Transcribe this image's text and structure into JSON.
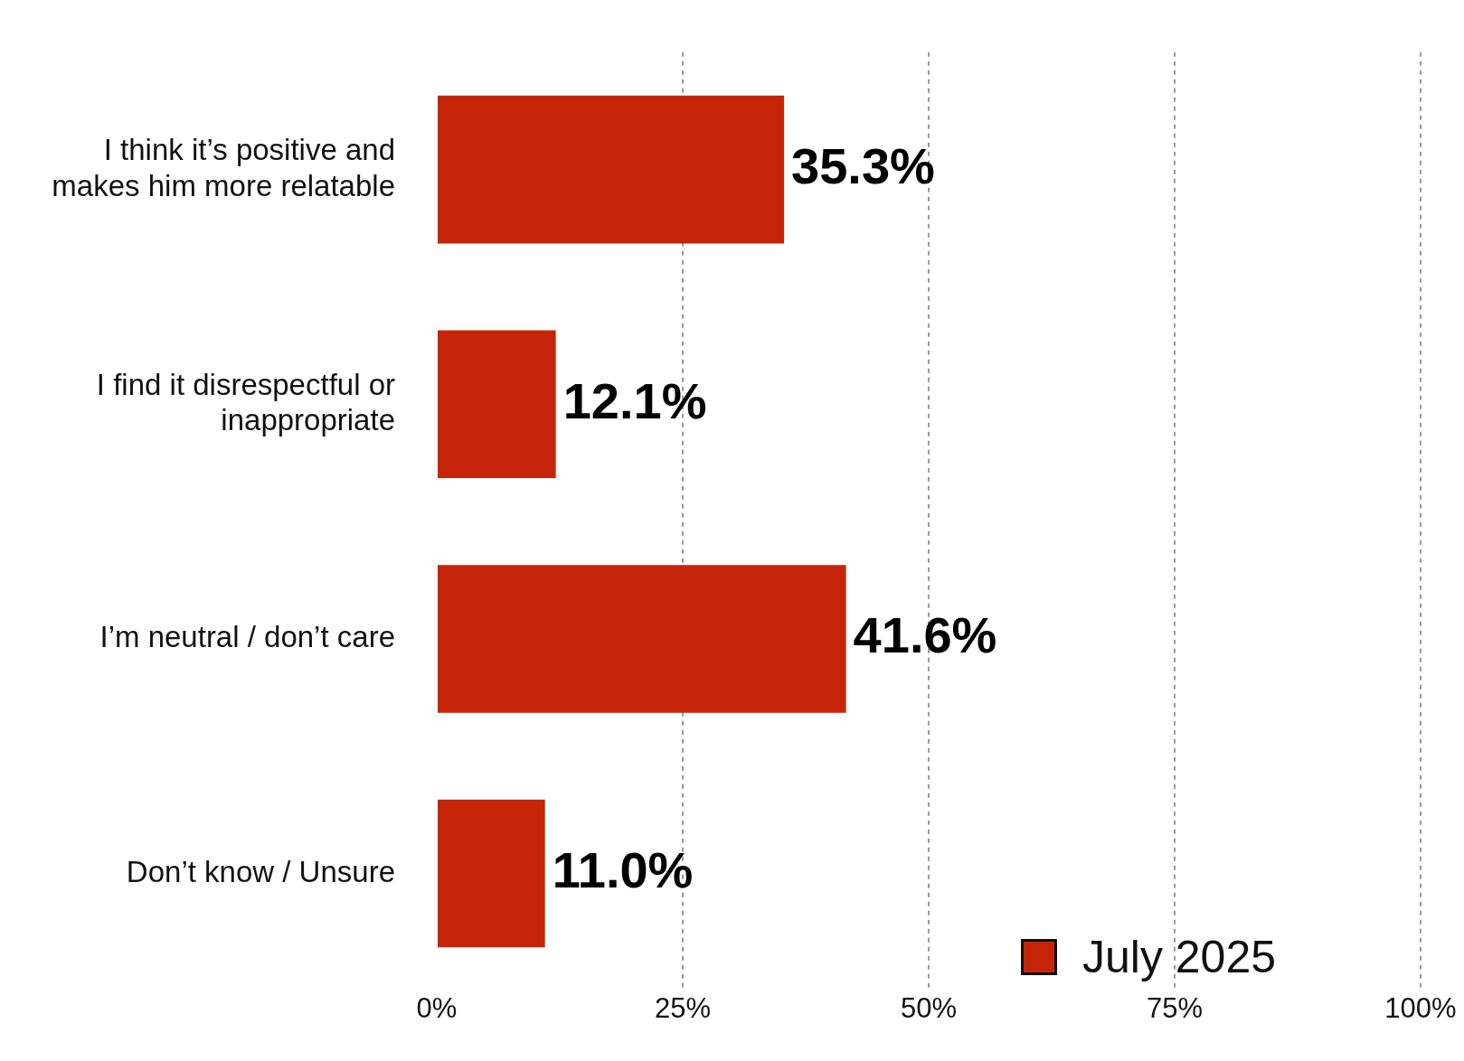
{
  "chart_data": {
    "type": "bar",
    "orientation": "horizontal",
    "categories": [
      "I think it’s positive and makes him more relatable",
      "I find it disrespectful or inappropriate",
      "I’m neutral / don’t care",
      "Don’t know / Unsure"
    ],
    "series": [
      {
        "name": "July 2025",
        "color": "#c62408",
        "values": [
          35.3,
          12.1,
          41.6,
          11.0
        ]
      }
    ],
    "value_labels": [
      "35.3%",
      "12.1%",
      "41.6%",
      "11.0%"
    ],
    "xlim": [
      0,
      100
    ],
    "xticks": [
      {
        "value": 0,
        "label": "0%"
      },
      {
        "value": 25,
        "label": "25%"
      },
      {
        "value": 50,
        "label": "50%"
      },
      {
        "value": 75,
        "label": "75%"
      },
      {
        "value": 100,
        "label": "100%"
      }
    ],
    "grid": "x",
    "legend": "bottom right"
  }
}
